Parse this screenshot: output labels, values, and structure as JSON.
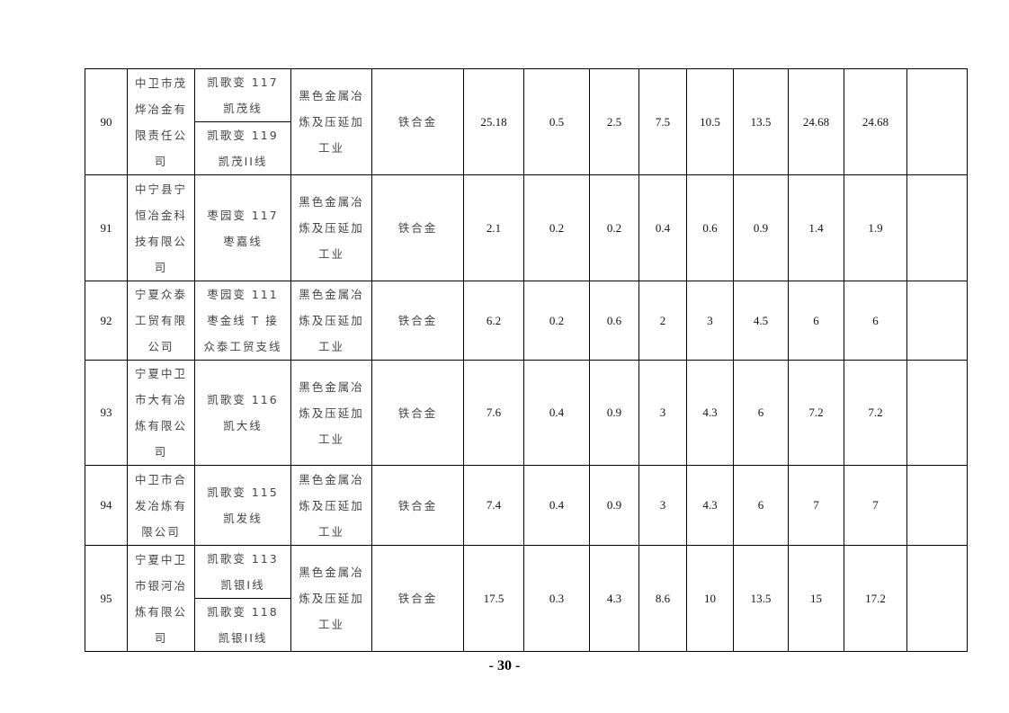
{
  "rows": [
    {
      "no": "90",
      "company": "中卫市茂烨冶金有限责任公司",
      "lines": [
        "凯歌变 117 凯茂线",
        "凯歌变 119 凯茂II线"
      ],
      "industry": "黑色金属冶炼及压延加工业",
      "product": "铁合金",
      "values": [
        "25.18",
        "0.5",
        "2.5",
        "7.5",
        "10.5",
        "13.5",
        "24.68",
        "24.68",
        ""
      ]
    },
    {
      "no": "91",
      "company": "中宁县宁恒冶金科技有限公司",
      "lines": [
        "枣园变 117 枣嘉线"
      ],
      "industry": "黑色金属冶炼及压延加工业",
      "product": "铁合金",
      "values": [
        "2.1",
        "0.2",
        "0.2",
        "0.4",
        "0.6",
        "0.9",
        "1.4",
        "1.9",
        ""
      ]
    },
    {
      "no": "92",
      "company": "宁夏众泰工贸有限公司",
      "lines": [
        "枣园变 111 枣金线 T 接众泰工贸支线"
      ],
      "industry": "黑色金属冶炼及压延加工业",
      "product": "铁合金",
      "values": [
        "6.2",
        "0.2",
        "0.6",
        "2",
        "3",
        "4.5",
        "6",
        "6",
        ""
      ]
    },
    {
      "no": "93",
      "company": "宁夏中卫市大有冶炼有限公司",
      "lines": [
        "凯歌变 116 凯大线"
      ],
      "industry": "黑色金属冶炼及压延加工业",
      "product": "铁合金",
      "values": [
        "7.6",
        "0.4",
        "0.9",
        "3",
        "4.3",
        "6",
        "7.2",
        "7.2",
        ""
      ]
    },
    {
      "no": "94",
      "company": "中卫市合发冶炼有限公司",
      "lines": [
        "凯歌变 115 凯发线"
      ],
      "industry": "黑色金属冶炼及压延加工业",
      "product": "铁合金",
      "values": [
        "7.4",
        "0.4",
        "0.9",
        "3",
        "4.3",
        "6",
        "7",
        "7",
        ""
      ]
    },
    {
      "no": "95",
      "company": "宁夏中卫市银河冶炼有限公司",
      "lines": [
        "凯歌变 113 凯银I线",
        "凯歌变 118 凯银II线"
      ],
      "industry": "黑色金属冶炼及压延加工业",
      "product": "铁合金",
      "values": [
        "17.5",
        "0.3",
        "4.3",
        "8.6",
        "10",
        "13.5",
        "15",
        "17.2",
        ""
      ]
    }
  ],
  "page_number": "- 30 -"
}
